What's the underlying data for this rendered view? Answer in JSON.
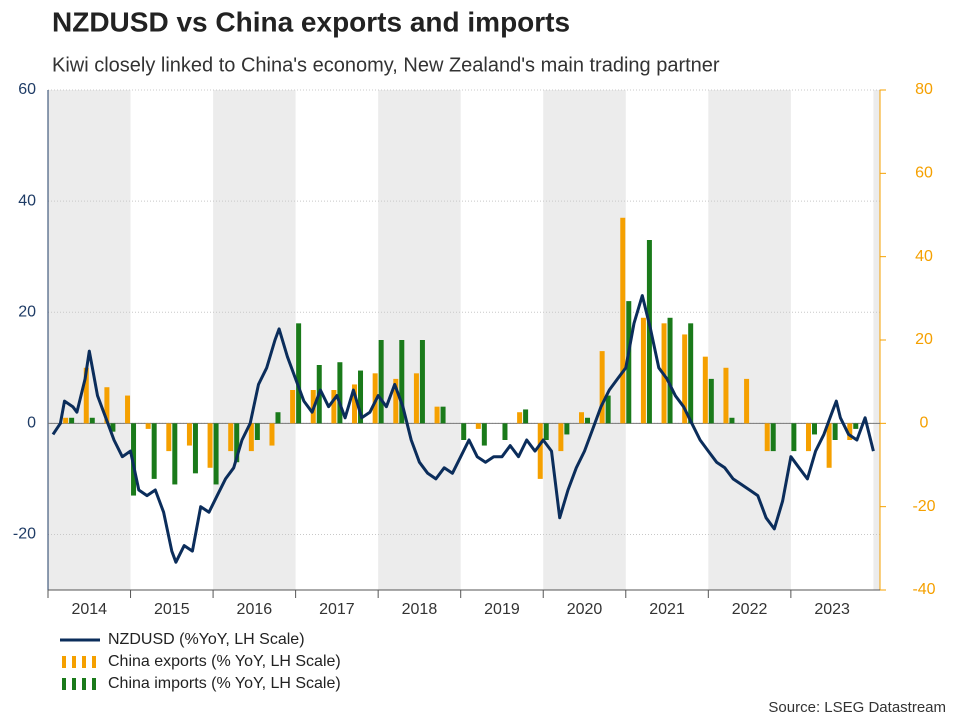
{
  "chart_data": {
    "type": "combo",
    "title": "NZDUSD vs China exports and imports",
    "subtitle": "Kiwi closely linked to China's economy, New Zealand's main trading partner",
    "source": "Source: LSEG Datastream",
    "xlim": [
      2014,
      2024.08
    ],
    "xticks": [
      2014,
      2015,
      2016,
      2017,
      2018,
      2019,
      2020,
      2021,
      2022,
      2023
    ],
    "ylim": [
      -30,
      60
    ],
    "yticks": [
      -20,
      0,
      20,
      40,
      60
    ],
    "y2lim": [
      -40,
      80
    ],
    "y2ticks": [
      -40,
      -20,
      0,
      20,
      40,
      60,
      80
    ],
    "grid": true,
    "shade_even_years": true,
    "series": [
      {
        "name": "NZDUSD (%YoY, LH Scale)",
        "type": "line",
        "color": "#0b2d5b",
        "x": [
          2014.06,
          2014.15,
          2014.2,
          2014.3,
          2014.35,
          2014.45,
          2014.5,
          2014.55,
          2014.6,
          2014.7,
          2014.8,
          2014.9,
          2015.0,
          2015.1,
          2015.2,
          2015.3,
          2015.4,
          2015.5,
          2015.55,
          2015.65,
          2015.75,
          2015.85,
          2015.95,
          2016.05,
          2016.15,
          2016.25,
          2016.35,
          2016.45,
          2016.55,
          2016.65,
          2016.75,
          2016.8,
          2016.9,
          2017.0,
          2017.1,
          2017.2,
          2017.3,
          2017.4,
          2017.5,
          2017.6,
          2017.7,
          2017.8,
          2017.9,
          2018.0,
          2018.1,
          2018.2,
          2018.3,
          2018.4,
          2018.5,
          2018.6,
          2018.7,
          2018.8,
          2018.9,
          2019.0,
          2019.1,
          2019.2,
          2019.3,
          2019.4,
          2019.5,
          2019.6,
          2019.7,
          2019.8,
          2019.9,
          2020.0,
          2020.1,
          2020.2,
          2020.3,
          2020.4,
          2020.5,
          2020.6,
          2020.7,
          2020.8,
          2020.9,
          2021.0,
          2021.1,
          2021.2,
          2021.3,
          2021.4,
          2021.5,
          2021.6,
          2021.7,
          2021.8,
          2021.9,
          2022.0,
          2022.1,
          2022.2,
          2022.3,
          2022.4,
          2022.5,
          2022.6,
          2022.7,
          2022.8,
          2022.9,
          2023.0,
          2023.1,
          2023.2,
          2023.3,
          2023.4,
          2023.5,
          2023.55,
          2023.6,
          2023.7,
          2023.8,
          2023.9,
          2024.0
        ],
        "values": [
          -2,
          0,
          4,
          3,
          2,
          8,
          13,
          9,
          5,
          1,
          -3,
          -6,
          -5,
          -12,
          -13,
          -12,
          -16,
          -23,
          -25,
          -22,
          -23,
          -15,
          -16,
          -13,
          -10,
          -8,
          -3,
          0,
          7,
          10,
          15,
          17,
          12,
          8,
          4,
          2,
          6,
          3,
          5,
          1,
          6,
          1,
          2,
          5,
          3,
          7,
          3,
          -3,
          -7,
          -9,
          -10,
          -8,
          -9,
          -6,
          -3,
          -6,
          -7,
          -6,
          -6,
          -4,
          -6,
          -3,
          -5,
          -3,
          -5,
          -17,
          -12,
          -8,
          -5,
          -1,
          3,
          6,
          8,
          10,
          18,
          23,
          17,
          10,
          8,
          5,
          3,
          0,
          -3,
          -5,
          -7,
          -8,
          -10,
          -11,
          -12,
          -13,
          -17,
          -19,
          -14,
          -6,
          -8,
          -10,
          -5,
          -2,
          2,
          4,
          1,
          -2,
          -3,
          1,
          -5
        ]
      },
      {
        "name": "China exports (% YoY, LH Scale)",
        "type": "bar",
        "color": "#f5a000",
        "x": [
          2014.25,
          2014.5,
          2014.75,
          2015.0,
          2015.25,
          2015.5,
          2015.75,
          2016.0,
          2016.25,
          2016.5,
          2016.75,
          2017.0,
          2017.25,
          2017.5,
          2017.75,
          2018.0,
          2018.25,
          2018.5,
          2018.75,
          2019.0,
          2019.25,
          2019.5,
          2019.75,
          2020.0,
          2020.25,
          2020.5,
          2020.75,
          2021.0,
          2021.25,
          2021.5,
          2021.75,
          2022.0,
          2022.25,
          2022.5,
          2022.75,
          2023.0,
          2023.25,
          2023.5,
          2023.75
        ],
        "values": [
          1,
          10,
          6.5,
          5,
          -1,
          -5,
          -4,
          -8,
          -5,
          -5,
          -4,
          6,
          6,
          6,
          7,
          9,
          8,
          9,
          3,
          0,
          -1,
          0,
          2,
          -10,
          -5,
          2,
          13,
          37,
          19,
          18,
          16,
          12,
          10,
          8,
          -5,
          0,
          -5,
          -8,
          -3
        ]
      },
      {
        "name": "China imports (% YoY, LH Scale)",
        "type": "bar",
        "color": "#1a7a1a",
        "x": [
          2014.25,
          2014.5,
          2014.75,
          2015.0,
          2015.25,
          2015.5,
          2015.75,
          2016.0,
          2016.25,
          2016.5,
          2016.75,
          2017.0,
          2017.25,
          2017.5,
          2017.75,
          2018.0,
          2018.25,
          2018.5,
          2018.75,
          2019.0,
          2019.25,
          2019.5,
          2019.75,
          2020.0,
          2020.25,
          2020.5,
          2020.75,
          2021.0,
          2021.25,
          2021.5,
          2021.75,
          2022.0,
          2022.25,
          2022.5,
          2022.75,
          2023.0,
          2023.25,
          2023.5,
          2023.75
        ],
        "values": [
          1,
          1,
          -1.5,
          -13,
          -10,
          -11,
          -9,
          -11,
          -7,
          -3,
          2,
          18,
          10.5,
          11,
          9.5,
          15,
          15,
          15,
          3,
          -3,
          -4,
          -3,
          2.5,
          -3,
          -2,
          1,
          5,
          22,
          33,
          19,
          18,
          8,
          1,
          0,
          -5,
          -5,
          -2,
          -3,
          -1
        ]
      }
    ]
  }
}
